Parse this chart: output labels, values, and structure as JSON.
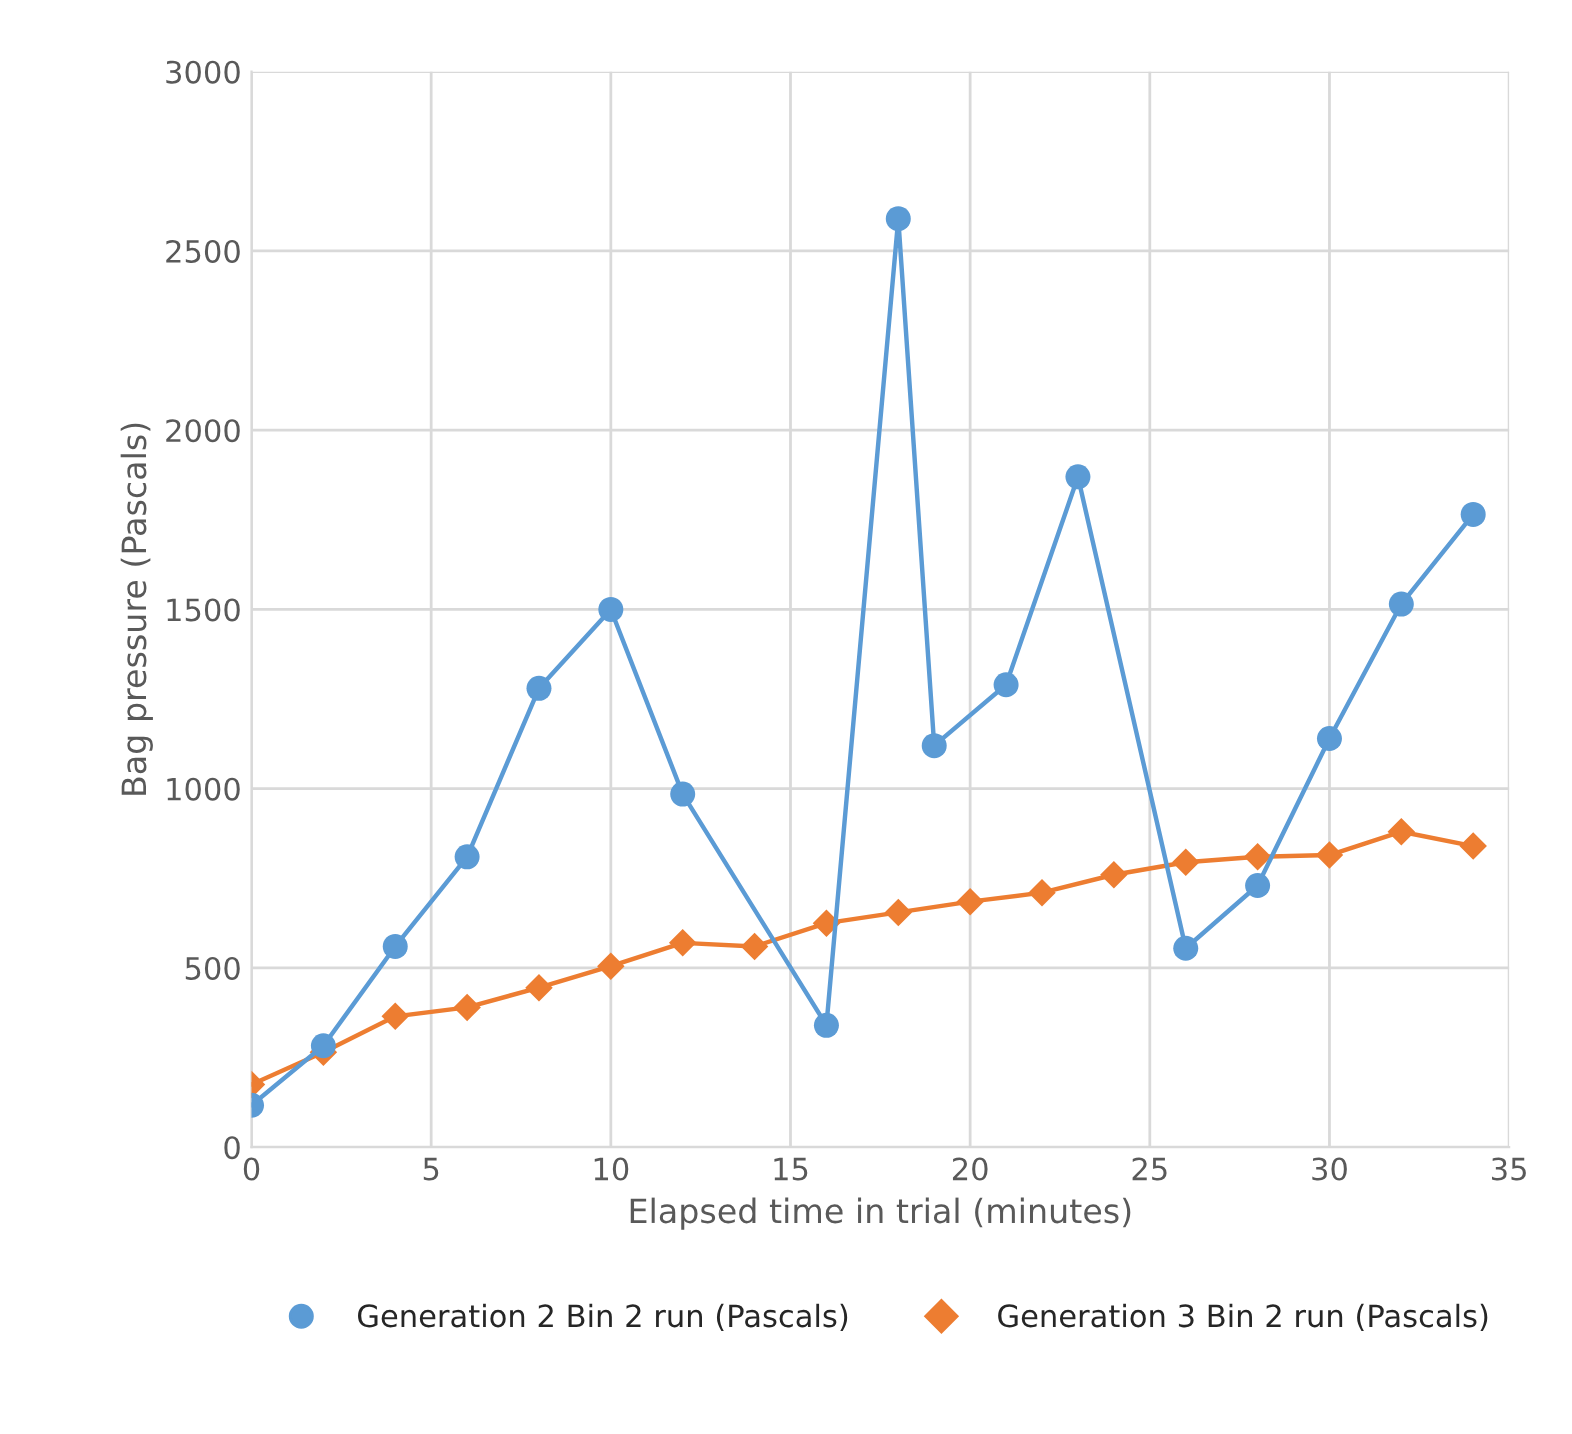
{
  "chart_data": {
    "type": "line",
    "xlabel": "Elapsed time in trial (minutes)",
    "ylabel": "Bag pressure (Pascals)",
    "xlim": [
      0,
      35
    ],
    "xticks": [
      0,
      5,
      10,
      15,
      20,
      25,
      30,
      35
    ],
    "ylim": [
      0,
      3000
    ],
    "yticks": [
      0,
      500,
      1000,
      1500,
      2000,
      2500,
      3000
    ],
    "grid": true,
    "legend": "bottom",
    "series": [
      {
        "name": "Generation 2 Bin 2 run (Pascals)",
        "color": "#5b9bd5",
        "marker": "circle",
        "x": [
          0,
          2,
          4,
          6,
          8,
          10,
          12,
          16,
          18,
          19,
          21,
          23,
          26,
          28,
          30,
          32,
          34
        ],
        "values": [
          117,
          283,
          560,
          810,
          1280,
          1500,
          985,
          340,
          2590,
          1120,
          1290,
          1870,
          555,
          730,
          1140,
          1515,
          1765
        ]
      },
      {
        "name": "Generation 3 Bin 2 run (Pascals)",
        "color": "#ed7d31",
        "marker": "diamond",
        "x": [
          0,
          2,
          4,
          6,
          8,
          10,
          12,
          14,
          16,
          18,
          20,
          22,
          24,
          26,
          28,
          30,
          32,
          34
        ],
        "values": [
          175,
          265,
          365,
          390,
          445,
          505,
          570,
          560,
          625,
          655,
          685,
          710,
          760,
          795,
          810,
          815,
          880,
          840
        ]
      }
    ]
  }
}
